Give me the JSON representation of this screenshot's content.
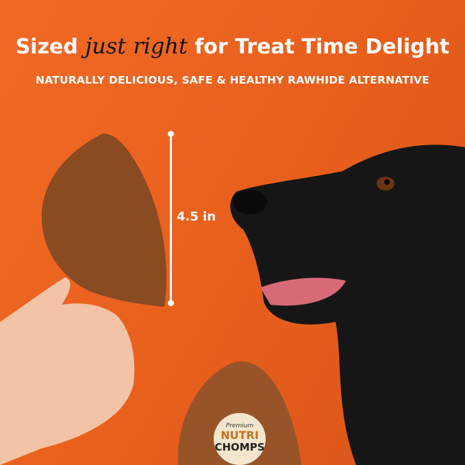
{
  "headline": {
    "before": "Sized",
    "script": "just right",
    "after": "for Treat Time Delight"
  },
  "subheadline": "NATURALLY DELICIOUS, SAFE & HEALTHY RAWHIDE ALTERNATIVE",
  "measurement": "4.5 in",
  "package": {
    "tagline": "Premium",
    "brand_top": "NUTRI",
    "brand_bottom": "CHOMPS"
  },
  "colors": {
    "background": "#ea601e",
    "chew": "#8a4a22",
    "dog": "#161616"
  }
}
